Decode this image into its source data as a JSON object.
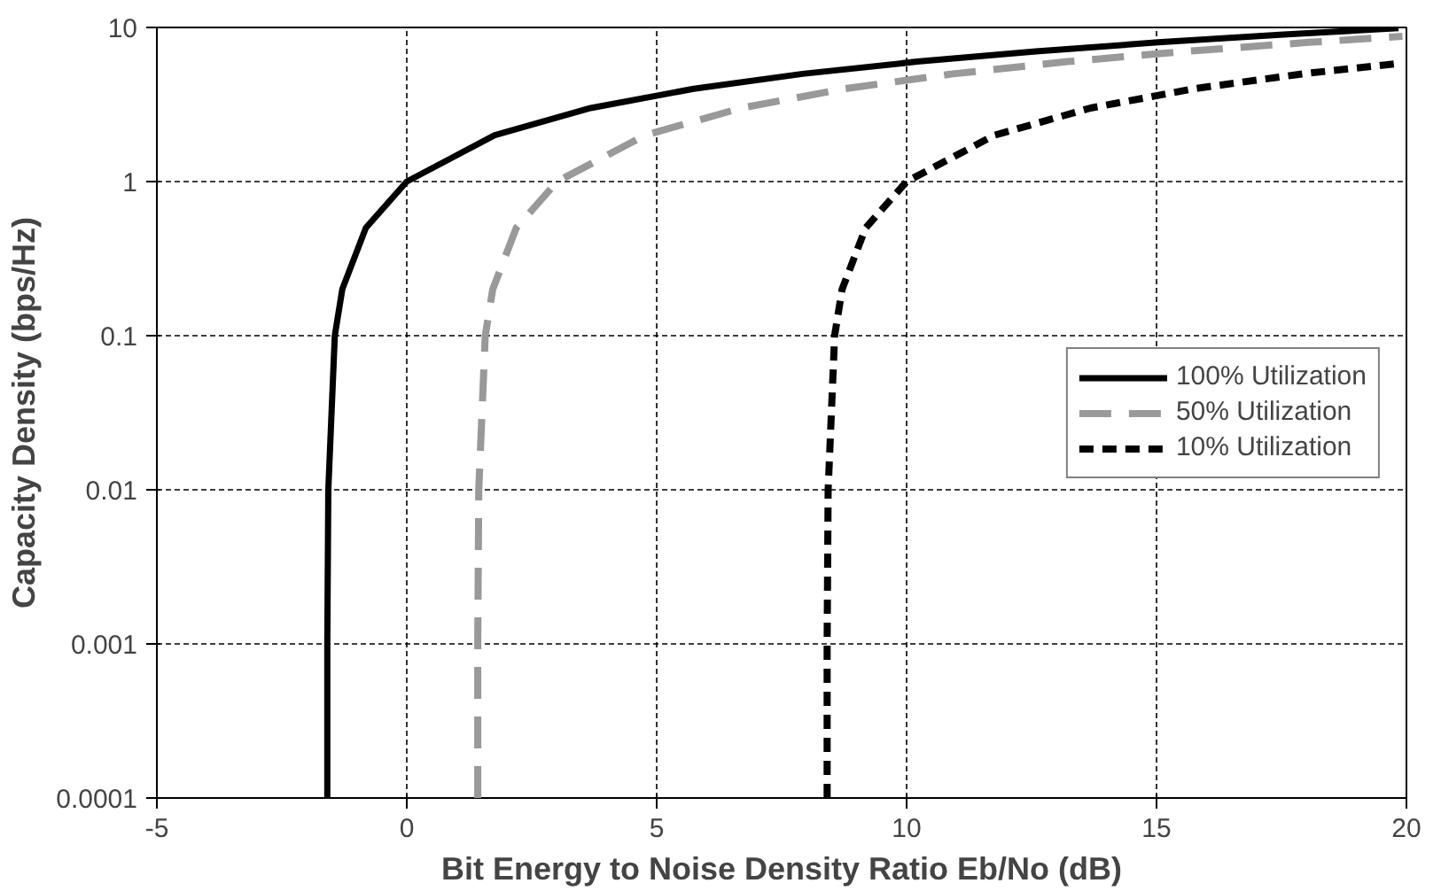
{
  "chart_data": {
    "type": "line",
    "xlabel": "Bit Energy to Noise Density Ratio Eb/No (dB)",
    "ylabel": "Capacity Density (bps/Hz)",
    "log": "y",
    "xlim": [
      -5,
      20
    ],
    "ylim": [
      0.0001,
      10
    ],
    "xticks": [
      -5,
      0,
      5,
      10,
      15,
      20
    ],
    "yticks": [
      0.0001,
      0.001,
      0.01,
      0.1,
      1,
      10
    ],
    "grid": true,
    "legend": "right",
    "marker": "none",
    "series": [
      {
        "name": "100% Utilization",
        "color": "#000000",
        "line_style": "solid",
        "x": [
          -1.59,
          -1.59,
          -1.57,
          -1.44,
          -1.29,
          -0.82,
          0,
          1.76,
          3.68,
          5.74,
          7.92,
          10.21,
          12.59,
          15.03,
          17.54,
          19.84
        ],
        "values": [
          0.0001,
          0.001,
          0.01,
          0.1,
          0.2,
          0.5,
          1,
          2,
          3,
          4,
          5,
          6,
          7,
          8,
          9,
          9.9
        ]
      },
      {
        "name": "50% Utilization",
        "color": "#999999",
        "line_style": "dashed",
        "x": [
          1.42,
          1.42,
          1.44,
          1.57,
          1.72,
          2.19,
          3.01,
          4.77,
          6.69,
          8.75,
          10.93,
          13.22,
          15.6,
          18.04,
          19.92
        ],
        "values": [
          0.0001,
          0.001,
          0.01,
          0.1,
          0.2,
          0.5,
          1,
          2,
          3,
          4,
          5,
          6,
          7,
          8,
          8.75
        ]
      },
      {
        "name": "10% Utilization",
        "color": "#000000",
        "line_style": "dotted",
        "x": [
          8.41,
          8.41,
          8.43,
          8.56,
          8.71,
          9.18,
          10,
          11.76,
          13.68,
          15.74,
          17.92,
          19.86
        ],
        "values": [
          0.0001,
          0.001,
          0.01,
          0.1,
          0.2,
          0.5,
          1,
          2,
          3,
          4,
          5,
          5.85
        ]
      }
    ]
  }
}
